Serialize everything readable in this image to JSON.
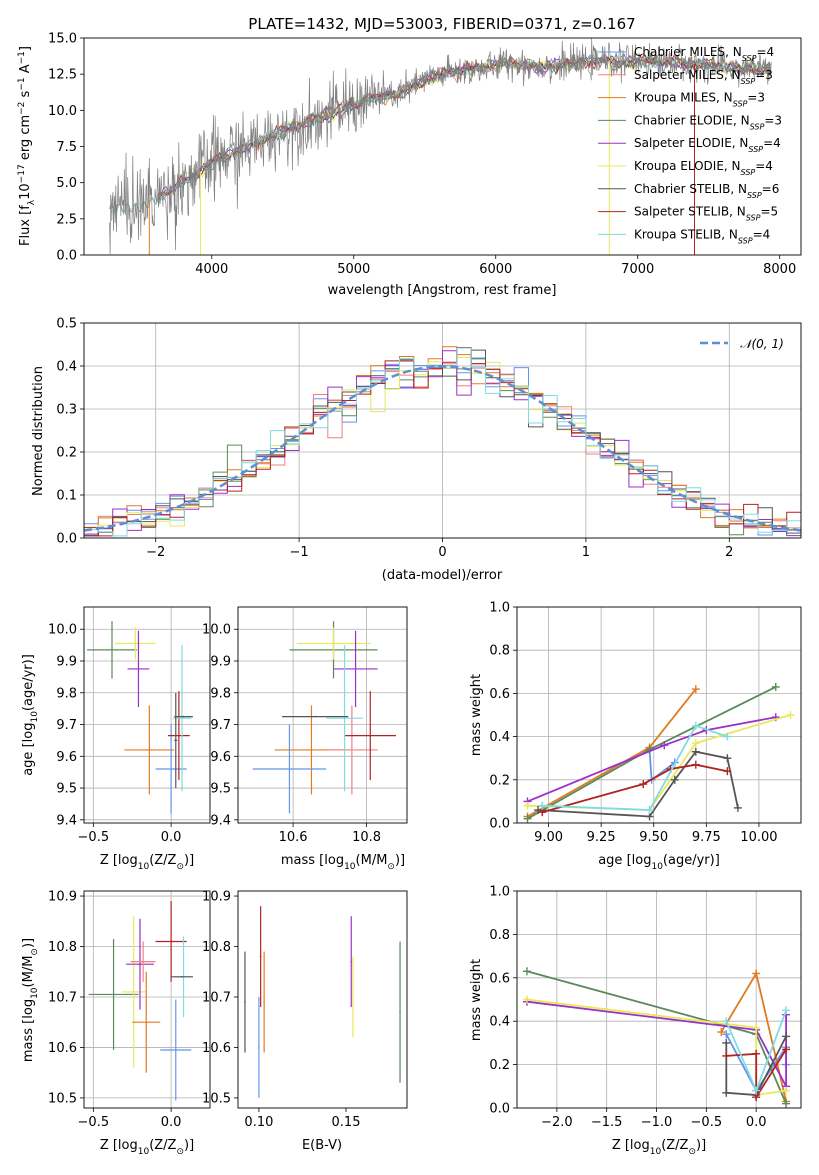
{
  "figure_title": "PLATE=1432, MJD=53003, FIBERID=0371, z=0.167",
  "chart_data": [
    {
      "id": "spectrum",
      "type": "line",
      "title": "PLATE=1432, MJD=53003, FIBERID=0371, z=0.167",
      "xlabel": "wavelength [Angstrom, rest frame]",
      "ylabel_parts": [
        "Flux [f",
        "λ",
        "10",
        "−17",
        " erg cm",
        "−2",
        " s",
        "−1",
        " A",
        "−1",
        "]"
      ],
      "xlim": [
        3100,
        8150
      ],
      "ylim": [
        0,
        15
      ],
      "xticks": [
        4000,
        5000,
        6000,
        7000,
        8000
      ],
      "yticks": [
        0.0,
        2.5,
        5.0,
        7.5,
        10.0,
        12.5,
        15.0
      ],
      "observed_color": "#808080",
      "continuum": [
        [
          3280,
          3.4
        ],
        [
          3500,
          3.5
        ],
        [
          3600,
          4.0
        ],
        [
          3700,
          4.4
        ],
        [
          3800,
          5.1
        ],
        [
          3900,
          5.6
        ],
        [
          4000,
          6.4
        ],
        [
          4100,
          6.9
        ],
        [
          4300,
          7.6
        ],
        [
          4500,
          8.6
        ],
        [
          4700,
          9.3
        ],
        [
          4900,
          10.0
        ],
        [
          5100,
          10.8
        ],
        [
          5300,
          11.1
        ],
        [
          5500,
          12.1
        ],
        [
          5700,
          12.7
        ],
        [
          5900,
          12.9
        ],
        [
          6100,
          13.3
        ],
        [
          6300,
          13.0
        ],
        [
          6500,
          13.2
        ],
        [
          6700,
          13.4
        ],
        [
          6900,
          13.4
        ],
        [
          7100,
          13.4
        ],
        [
          7300,
          13.3
        ],
        [
          7500,
          13.1
        ],
        [
          7700,
          12.9
        ],
        [
          7900,
          12.9
        ]
      ],
      "legend_position": "upper right",
      "legend": [
        {
          "label": "Chabrier MILES, N",
          "sub": "SSP",
          "val": "=4",
          "color": "#6495ed"
        },
        {
          "label": "Salpeter MILES, N",
          "sub": "SSP",
          "val": "=3",
          "color": "#f08080"
        },
        {
          "label": "Kroupa MILES, N",
          "sub": "SSP",
          "val": "=3",
          "color": "#e07b20"
        },
        {
          "label": "Chabrier ELODIE, N",
          "sub": "SSP",
          "val": "=3",
          "color": "#5a8a5a"
        },
        {
          "label": "Salpeter ELODIE, N",
          "sub": "SSP",
          "val": "=4",
          "color": "#9b30c8"
        },
        {
          "label": "Kroupa ELODIE, N",
          "sub": "SSP",
          "val": "=4",
          "color": "#e8e85a"
        },
        {
          "label": "Chabrier STELIB, N",
          "sub": "SSP",
          "val": "=6",
          "color": "#555555"
        },
        {
          "label": "Salpeter STELIB, N",
          "sub": "SSP",
          "val": "=5",
          "color": "#b22222"
        },
        {
          "label": "Kroupa STELIB, N",
          "sub": "SSP",
          "val": "=4",
          "color": "#7fdce0"
        }
      ]
    },
    {
      "id": "residuals",
      "type": "area",
      "xlabel": "(data-model)/error",
      "ylabel": "Normed distribution",
      "xlim": [
        -2.5,
        2.5
      ],
      "ylim": [
        0,
        0.5
      ],
      "xticks": [
        -2,
        -1,
        0,
        1,
        2
      ],
      "xtick_labels": [
        "−2",
        "−1",
        "0",
        "1",
        "2"
      ],
      "yticks": [
        0.0,
        0.1,
        0.2,
        0.3,
        0.4,
        0.5
      ],
      "grid": true,
      "bin_width": 0.1,
      "gaussian": {
        "label": "𝒩(0, 1)",
        "color": "#5b8fd6"
      },
      "legend_position": "upper right"
    },
    {
      "id": "age_vs_Z",
      "type": "scatter",
      "xlabel_parts": [
        "Z [log",
        "10",
        "(Z/Z",
        "⊙",
        ")]"
      ],
      "ylabel_parts": [
        "age  [log",
        "10",
        "(age/yr)]"
      ],
      "xlim": [
        -0.56,
        0.25
      ],
      "ylim": [
        9.39,
        10.07
      ],
      "xticks": [
        -0.5,
        0.0
      ],
      "xtick_labels": [
        "−0.5",
        "0.0"
      ],
      "yticks": [
        9.4,
        9.5,
        9.6,
        9.7,
        9.8,
        9.9,
        10.0
      ],
      "grid": true,
      "points": [
        {
          "x": -0.38,
          "y": 9.935,
          "xerr": 0.16,
          "yerr": 0.09,
          "color": "#5a8a5a"
        },
        {
          "x": -0.23,
          "y": 9.955,
          "xerr": 0.13,
          "yerr": 0.05,
          "color": "#e8e85a"
        },
        {
          "x": -0.21,
          "y": 9.875,
          "xerr": 0.07,
          "yerr": 0.12,
          "color": "#9b30c8"
        },
        {
          "x": -0.14,
          "y": 9.62,
          "xerr": 0.16,
          "yerr": 0.14,
          "color": "#e07b20"
        },
        {
          "x": 0.0,
          "y": 9.56,
          "xerr": 0.1,
          "yerr": 0.14,
          "color": "#6495ed"
        },
        {
          "x": 0.05,
          "y": 9.665,
          "xerr": 0.07,
          "yerr": 0.14,
          "color": "#b22222"
        },
        {
          "x": 0.07,
          "y": 9.72,
          "xerr": 0.06,
          "yerr": 0.23,
          "color": "#7fdce0"
        },
        {
          "x": 0.08,
          "y": 9.725,
          "xerr": 0.06,
          "yerr": 0.0,
          "color": "#555555"
        },
        {
          "x": 0.03,
          "y": 9.65,
          "xerr": 0.01,
          "yerr": 0.15,
          "color": "#555555"
        }
      ]
    },
    {
      "id": "age_vs_mass",
      "type": "scatter",
      "xlabel_parts": [
        "mass [log",
        "10",
        "(M/M",
        "⊙",
        ")]"
      ],
      "ylabel": "",
      "xlim": [
        10.45,
        10.91
      ],
      "ylim": [
        9.39,
        10.07
      ],
      "xticks": [
        10.6,
        10.8
      ],
      "yticks": [
        9.4,
        9.5,
        9.6,
        9.7,
        9.8,
        9.9,
        10.0
      ],
      "grid": true,
      "points": [
        {
          "x": 10.71,
          "y": 9.935,
          "xerr": 0.12,
          "yerr": 0.09,
          "color": "#5a8a5a"
        },
        {
          "x": 10.71,
          "y": 9.955,
          "xerr": 0.1,
          "yerr": 0.05,
          "color": "#e8e85a"
        },
        {
          "x": 10.77,
          "y": 9.875,
          "xerr": 0.06,
          "yerr": 0.12,
          "color": "#9b30c8"
        },
        {
          "x": 10.65,
          "y": 9.62,
          "xerr": 0.1,
          "yerr": 0.14,
          "color": "#e07b20"
        },
        {
          "x": 10.76,
          "y": 9.62,
          "xerr": 0.07,
          "yerr": 0.14,
          "color": "#f08080"
        },
        {
          "x": 10.59,
          "y": 9.56,
          "xerr": 0.1,
          "yerr": 0.14,
          "color": "#6495ed"
        },
        {
          "x": 10.81,
          "y": 9.665,
          "xerr": 0.07,
          "yerr": 0.14,
          "color": "#b22222"
        },
        {
          "x": 10.74,
          "y": 9.72,
          "xerr": 0.05,
          "yerr": 0.23,
          "color": "#7fdce0"
        },
        {
          "x": 10.66,
          "y": 9.725,
          "xerr": 0.09,
          "yerr": 0.0,
          "color": "#555555"
        }
      ]
    },
    {
      "id": "weight_vs_age",
      "type": "line",
      "xlabel_parts": [
        "age  [log",
        "10",
        "(age/yr)]"
      ],
      "ylabel": "mass weight",
      "xlim": [
        8.85,
        10.2
      ],
      "ylim": [
        0,
        1.0
      ],
      "xticks": [
        9.0,
        9.25,
        9.5,
        9.75,
        10.0
      ],
      "xtick_labels": [
        "9.00",
        "9.25",
        "9.50",
        "9.75",
        "10.00"
      ],
      "yticks": [
        0.0,
        0.2,
        0.4,
        0.6,
        0.8,
        1.0
      ],
      "grid": true,
      "series": [
        {
          "color": "#6495ed",
          "x": [
            9.48,
            9.49,
            9.6
          ],
          "y": [
            0.34,
            0.2,
            0.28
          ]
        },
        {
          "color": "#e07b20",
          "x": [
            8.9,
            9.48,
            9.7
          ],
          "y": [
            0.03,
            0.35,
            0.62
          ]
        },
        {
          "color": "#5a8a5a",
          "x": [
            8.9,
            9.48,
            10.08
          ],
          "y": [
            0.02,
            0.34,
            0.63
          ]
        },
        {
          "color": "#9b30c8",
          "x": [
            8.9,
            9.55,
            9.75,
            10.08
          ],
          "y": [
            0.1,
            0.36,
            0.43,
            0.49
          ]
        },
        {
          "color": "#e8e85a",
          "x": [
            8.9,
            9.48,
            9.7,
            10.15
          ],
          "y": [
            0.08,
            0.06,
            0.37,
            0.5
          ]
        },
        {
          "color": "#555555",
          "x": [
            8.95,
            9.48,
            9.6,
            9.7,
            9.85,
            9.9
          ],
          "y": [
            0.06,
            0.03,
            0.2,
            0.33,
            0.3,
            0.07
          ]
        },
        {
          "color": "#b22222",
          "x": [
            8.97,
            9.45,
            9.58,
            9.7,
            9.85
          ],
          "y": [
            0.05,
            0.18,
            0.25,
            0.27,
            0.24
          ]
        },
        {
          "color": "#7fdce0",
          "x": [
            8.97,
            9.48,
            9.7,
            9.85
          ],
          "y": [
            0.08,
            0.06,
            0.45,
            0.4
          ]
        }
      ]
    },
    {
      "id": "mass_vs_Z",
      "type": "scatter",
      "xlabel_parts": [
        "Z [log",
        "10",
        "(Z/Z",
        "⊙",
        ")]"
      ],
      "ylabel_parts": [
        "mass [log",
        "10",
        "(M/M",
        "⊙",
        ")]"
      ],
      "xlim": [
        -0.56,
        0.25
      ],
      "ylim": [
        10.48,
        10.91
      ],
      "xticks": [
        -0.5,
        0.0
      ],
      "xtick_labels": [
        "−0.5",
        "0.0"
      ],
      "yticks": [
        10.5,
        10.6,
        10.7,
        10.8,
        10.9
      ],
      "grid": true,
      "points": [
        {
          "x": -0.37,
          "y": 10.705,
          "xerr": 0.16,
          "yerr": 0.11,
          "color": "#5a8a5a"
        },
        {
          "x": -0.24,
          "y": 10.71,
          "xerr": 0.08,
          "yerr": 0.15,
          "color": "#e8e85a"
        },
        {
          "x": -0.2,
          "y": 10.765,
          "xerr": 0.09,
          "yerr": 0.09,
          "color": "#9b30c8"
        },
        {
          "x": -0.18,
          "y": 10.77,
          "xerr": 0.08,
          "yerr": 0.04,
          "color": "#f08080"
        },
        {
          "x": -0.16,
          "y": 10.65,
          "xerr": 0.09,
          "yerr": 0.1,
          "color": "#e07b20"
        },
        {
          "x": 0.0,
          "y": 10.81,
          "xerr": 0.1,
          "yerr": 0.08,
          "color": "#b22222"
        },
        {
          "x": 0.03,
          "y": 10.595,
          "xerr": 0.1,
          "yerr": 0.1,
          "color": "#6495ed"
        },
        {
          "x": 0.08,
          "y": 10.74,
          "xerr": 0.06,
          "yerr": 0.08,
          "color": "#7fdce0"
        },
        {
          "x": 0.07,
          "y": 10.74,
          "xerr": 0.07,
          "yerr": 0.0,
          "color": "#555555"
        }
      ]
    },
    {
      "id": "mass_vs_ebv",
      "type": "scatter",
      "xlabel": "E(B-V)",
      "ylabel": "",
      "xlim": [
        0.088,
        0.185
      ],
      "ylim": [
        10.48,
        10.91
      ],
      "xticks": [
        0.1,
        0.15
      ],
      "xtick_labels": [
        "0.10",
        "0.15"
      ],
      "yticks": [
        10.5,
        10.6,
        10.7,
        10.8,
        10.9
      ],
      "grid": false,
      "points": [
        {
          "x": 0.092,
          "y": 10.69,
          "xerr": 0.0,
          "yerr": 0.1,
          "color": "#555555"
        },
        {
          "x": 0.1,
          "y": 10.6,
          "xerr": 0.0,
          "yerr": 0.1,
          "color": "#6495ed"
        },
        {
          "x": 0.101,
          "y": 10.78,
          "xerr": 0.0,
          "yerr": 0.1,
          "color": "#b22222"
        },
        {
          "x": 0.103,
          "y": 10.69,
          "xerr": 0.0,
          "yerr": 0.1,
          "color": "#e07b20"
        },
        {
          "x": 0.153,
          "y": 10.77,
          "xerr": 0.0,
          "yerr": 0.09,
          "color": "#9b30c8"
        },
        {
          "x": 0.154,
          "y": 10.7,
          "xerr": 0.0,
          "yerr": 0.08,
          "color": "#e8e85a"
        },
        {
          "x": 0.181,
          "y": 10.67,
          "xerr": 0.0,
          "yerr": 0.14,
          "color": "#5a8a5a"
        }
      ]
    },
    {
      "id": "weight_vs_Z",
      "type": "line",
      "xlabel_parts": [
        "Z [log",
        "10",
        "(Z/Z",
        "⊙",
        ")]"
      ],
      "ylabel": "mass weight",
      "xlim": [
        -2.4,
        0.45
      ],
      "ylim": [
        0,
        1.0
      ],
      "xticks": [
        -2.0,
        -1.5,
        -1.0,
        -0.5,
        0.0
      ],
      "xtick_labels": [
        "−2.0",
        "−1.5",
        "−1.0",
        "−0.5",
        "0.0"
      ],
      "yticks": [
        0.0,
        0.2,
        0.4,
        0.6,
        0.8,
        1.0
      ],
      "grid": true,
      "series": [
        {
          "color": "#6495ed",
          "x": [
            -0.3,
            0.0,
            0.3,
            0.3
          ],
          "y": [
            0.34,
            0.08,
            0.28,
            0.2
          ]
        },
        {
          "color": "#e07b20",
          "x": [
            -0.35,
            0.0,
            0.3
          ],
          "y": [
            0.35,
            0.62,
            0.03
          ]
        },
        {
          "color": "#5a8a5a",
          "x": [
            -2.3,
            0.0,
            0.3
          ],
          "y": [
            0.63,
            0.34,
            0.02
          ]
        },
        {
          "color": "#9b30c8",
          "x": [
            -2.3,
            0.0,
            0.3,
            0.3
          ],
          "y": [
            0.49,
            0.36,
            0.1,
            0.43
          ]
        },
        {
          "color": "#e8e85a",
          "x": [
            -2.3,
            0.0,
            0.0,
            0.3
          ],
          "y": [
            0.5,
            0.37,
            0.06,
            0.08
          ]
        },
        {
          "color": "#555555",
          "x": [
            -0.3,
            -0.3,
            0.0,
            0.3
          ],
          "y": [
            0.3,
            0.07,
            0.06,
            0.33
          ]
        },
        {
          "color": "#b22222",
          "x": [
            -0.3,
            0.0,
            0.0,
            0.3
          ],
          "y": [
            0.24,
            0.25,
            0.05,
            0.27
          ]
        },
        {
          "color": "#7fdce0",
          "x": [
            -0.3,
            0.0,
            0.3
          ],
          "y": [
            0.4,
            0.08,
            0.45
          ]
        }
      ]
    }
  ]
}
